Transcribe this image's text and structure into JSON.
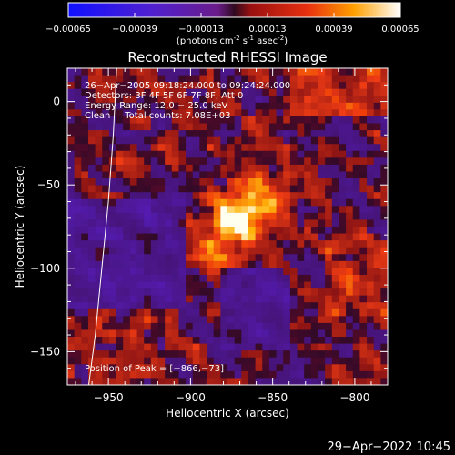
{
  "colorbar": {
    "ticks": [
      "-0.00065",
      "-0.00039",
      "-0.00013",
      "0.00013",
      "0.00039",
      "0.00065"
    ],
    "unit_text": "(photons cm",
    "unit_sup1": "-2",
    "unit_mid": " s",
    "unit_sup2": "-1",
    "unit_mid2": " asec",
    "unit_sup3": "-2",
    "unit_end": ")"
  },
  "chart_data": {
    "type": "heatmap",
    "title": "Reconstructed RHESSI Image",
    "xlabel": "Heliocentric X (arcsec)",
    "ylabel": "Heliocentric Y (arcsec)",
    "xlim": [
      -975,
      -780
    ],
    "ylim": [
      -170,
      20
    ],
    "x_ticks": [
      -950,
      -900,
      -850,
      -800
    ],
    "y_ticks": [
      0,
      -50,
      -100,
      -150
    ],
    "x_tick_labels": [
      "−950",
      "−900",
      "−850",
      "−800"
    ],
    "y_tick_labels": [
      "0",
      "−50",
      "−100",
      "−150"
    ],
    "colorbar_range": [
      -0.00065,
      0.00065
    ],
    "peak_position": [
      -866,
      -73
    ],
    "info_lines": [
      "26−Apr−2005 09:18:24.000 to 09:24:24.000",
      "Detectors: 3F 4F 5F 6F 7F 8F, Att 0",
      "Energy Range: 12.0 − 25.0 keV",
      "Clean     Total counts: 7.08E+03"
    ],
    "peak_label": "Position of Peak = [−866,−73]",
    "limb_curve": [
      [
        -945,
        20
      ],
      [
        -947,
        -20
      ],
      [
        -950,
        -60
      ],
      [
        -954,
        -100
      ],
      [
        -958,
        -140
      ],
      [
        -962,
        -170
      ]
    ]
  },
  "footer": {
    "timestamp": "29−Apr−2022 10:45"
  }
}
